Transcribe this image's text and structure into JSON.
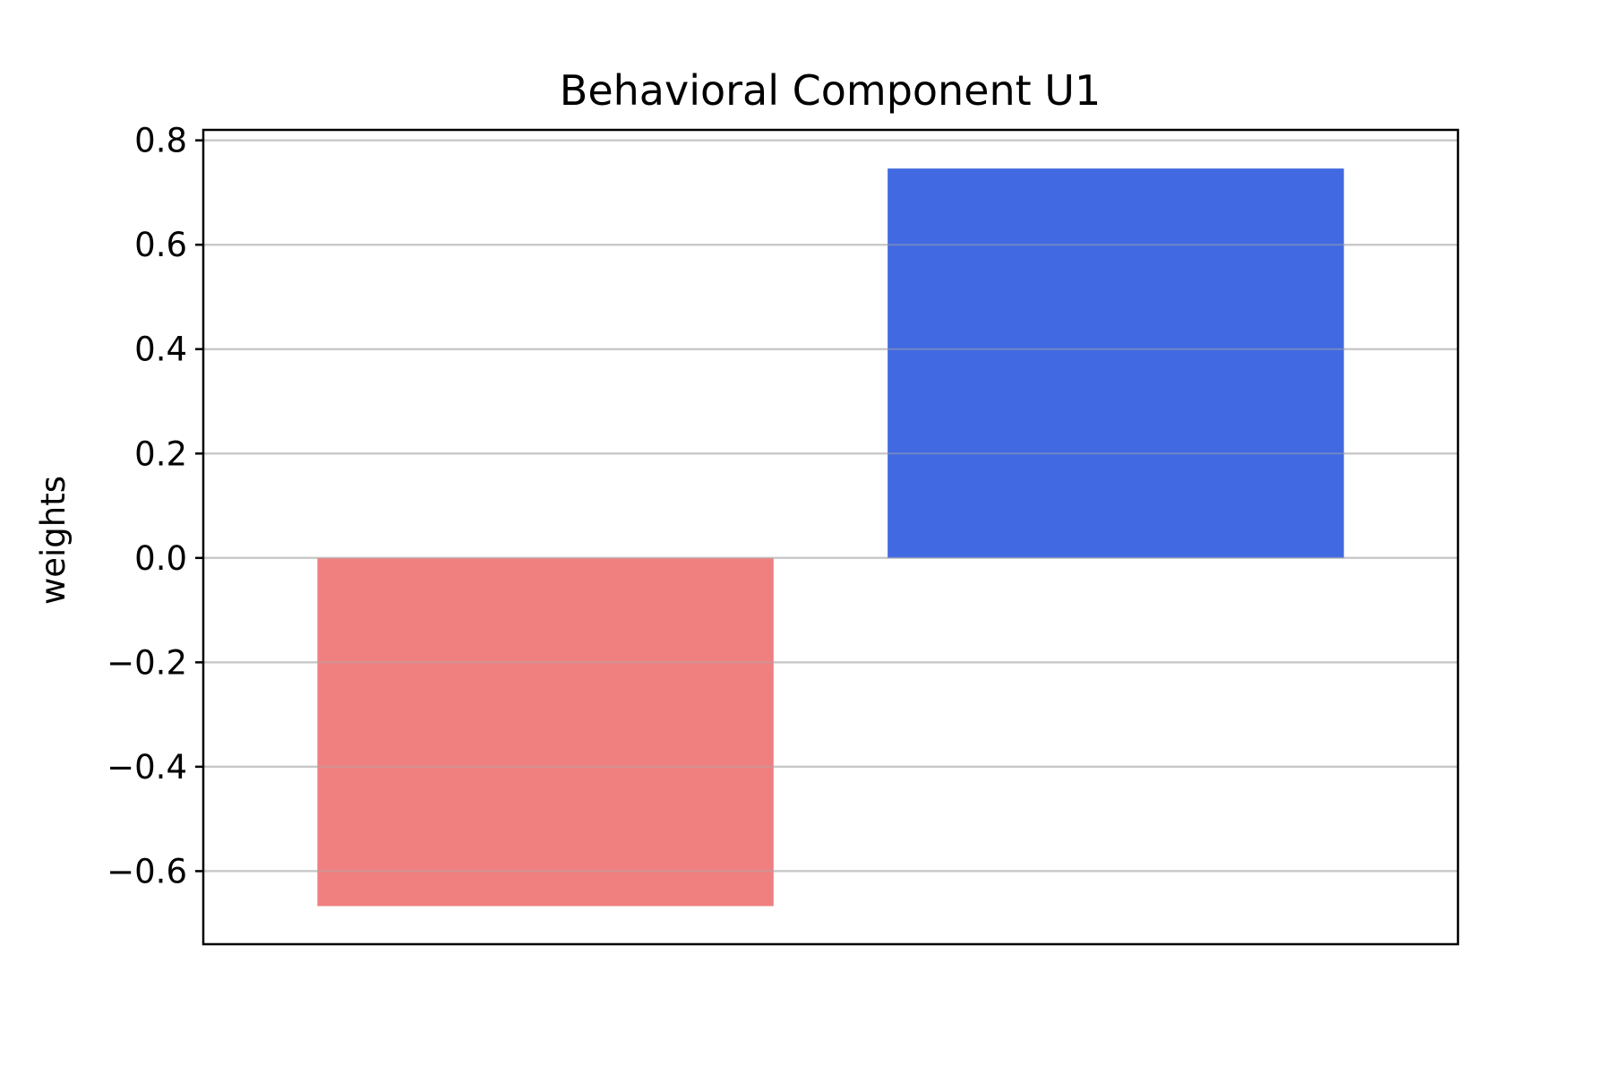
{
  "chart_data": {
    "type": "bar",
    "title": "Behavioral Component U1",
    "xlabel": "",
    "ylabel": "weights",
    "categories": [
      "",
      ""
    ],
    "values": [
      -0.667,
      0.746
    ],
    "bar_colors": [
      "#f08080",
      "#4169e1"
    ],
    "ylim": [
      -0.74,
      0.82
    ],
    "yticks": [
      -0.6,
      -0.4,
      -0.2,
      0.0,
      0.2,
      0.4,
      0.6,
      0.8
    ],
    "ytick_labels": [
      "−0.6",
      "−0.4",
      "−0.2",
      "0.0",
      "0.2",
      "0.4",
      "0.6",
      "0.8"
    ],
    "grid": "horizontal",
    "grid_color": "#dddddd",
    "legend": "none"
  }
}
